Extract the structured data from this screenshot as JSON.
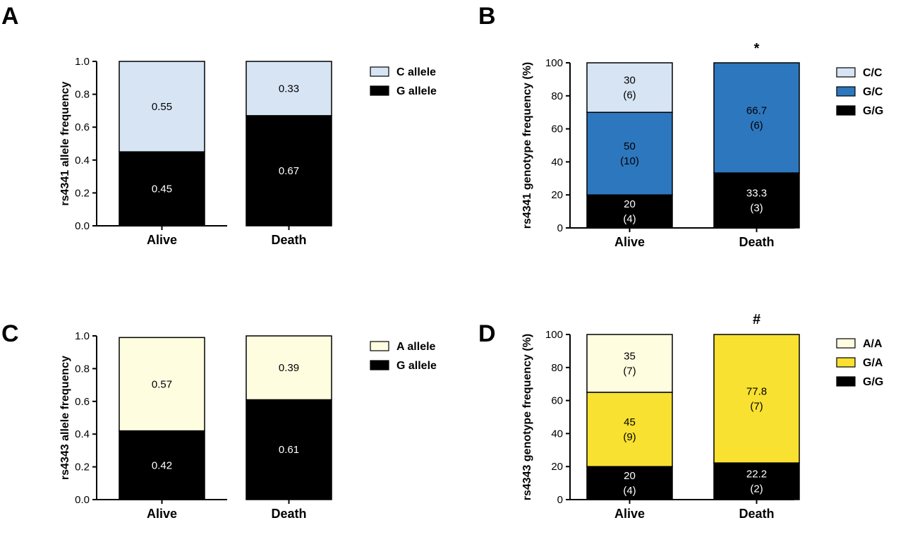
{
  "colors": {
    "black": "#000000",
    "light_blue": "#d6e4f4",
    "blue": "#2d77be",
    "light_yellow": "#fefde0",
    "yellow": "#f8e130"
  },
  "chart_data": [
    {
      "panel": "A",
      "type": "bar",
      "stacked": true,
      "ylabel": "rs4341 allele frequency",
      "categories": [
        "Alive",
        "Death"
      ],
      "ylim": [
        0,
        1.0
      ],
      "yticks": [
        "0.0",
        "0.2",
        "0.4",
        "0.6",
        "0.8",
        "1.0"
      ],
      "series": [
        {
          "name": "G allele",
          "color": "#000000",
          "values": [
            0.45,
            0.67
          ],
          "labels": [
            [
              "0.45"
            ],
            [
              "0.67"
            ]
          ]
        },
        {
          "name": "C allele",
          "color": "#d6e4f4",
          "values": [
            0.55,
            0.33
          ],
          "labels": [
            [
              "0.55"
            ],
            [
              "0.33"
            ]
          ]
        }
      ],
      "legend": [
        "C allele",
        "G allele"
      ],
      "legend_position": "right",
      "annotation": ""
    },
    {
      "panel": "B",
      "type": "bar",
      "stacked": true,
      "ylabel": "rs4341 genotype frequency (%)",
      "categories": [
        "Alive",
        "Death"
      ],
      "ylim": [
        0,
        100
      ],
      "yticks": [
        "0",
        "20",
        "40",
        "60",
        "80",
        "100"
      ],
      "series": [
        {
          "name": "G/G",
          "color": "#000000",
          "values": [
            20,
            33.3
          ],
          "labels": [
            [
              "20",
              "(4)"
            ],
            [
              "33.3",
              "(3)"
            ]
          ]
        },
        {
          "name": "G/C",
          "color": "#2d77be",
          "values": [
            50,
            66.7
          ],
          "labels": [
            [
              "50",
              "(10)"
            ],
            [
              "66.7",
              "(6)"
            ]
          ]
        },
        {
          "name": "C/C",
          "color": "#d6e4f4",
          "values": [
            30,
            0
          ],
          "labels": [
            [
              "30",
              "(6)"
            ],
            []
          ]
        }
      ],
      "legend": [
        "C/C",
        "G/C",
        "G/G"
      ],
      "legend_position": "right",
      "annotation": "*"
    },
    {
      "panel": "C",
      "type": "bar",
      "stacked": true,
      "ylabel": "rs4343 allele frequency",
      "categories": [
        "Alive",
        "Death"
      ],
      "ylim": [
        0,
        1.0
      ],
      "yticks": [
        "0.0",
        "0.2",
        "0.4",
        "0.6",
        "0.8",
        "1.0"
      ],
      "series": [
        {
          "name": "G allele",
          "color": "#000000",
          "values": [
            0.42,
            0.61
          ],
          "labels": [
            [
              "0.42"
            ],
            [
              "0.61"
            ]
          ]
        },
        {
          "name": "A allele",
          "color": "#fefde0",
          "values": [
            0.57,
            0.39
          ],
          "labels": [
            [
              "0.57"
            ],
            [
              "0.39"
            ]
          ]
        }
      ],
      "legend": [
        "A allele",
        "G allele"
      ],
      "legend_position": "right",
      "annotation": ""
    },
    {
      "panel": "D",
      "type": "bar",
      "stacked": true,
      "ylabel": "rs4343 genotype frequency (%)",
      "categories": [
        "Alive",
        "Death"
      ],
      "ylim": [
        0,
        100
      ],
      "yticks": [
        "0",
        "20",
        "40",
        "60",
        "80",
        "100"
      ],
      "series": [
        {
          "name": "G/G",
          "color": "#000000",
          "values": [
            20,
            22.2
          ],
          "labels": [
            [
              "20",
              "(4)"
            ],
            [
              "22.2",
              "(2)"
            ]
          ]
        },
        {
          "name": "G/A",
          "color": "#f8e130",
          "values": [
            45,
            77.8
          ],
          "labels": [
            [
              "45",
              "(9)"
            ],
            [
              "77.8",
              "(7)"
            ]
          ]
        },
        {
          "name": "A/A",
          "color": "#fefde0",
          "values": [
            35,
            0
          ],
          "labels": [
            [
              "35",
              "(7)"
            ],
            []
          ]
        }
      ],
      "legend": [
        "A/A",
        "G/A",
        "G/G"
      ],
      "legend_position": "right",
      "annotation": "#"
    }
  ]
}
